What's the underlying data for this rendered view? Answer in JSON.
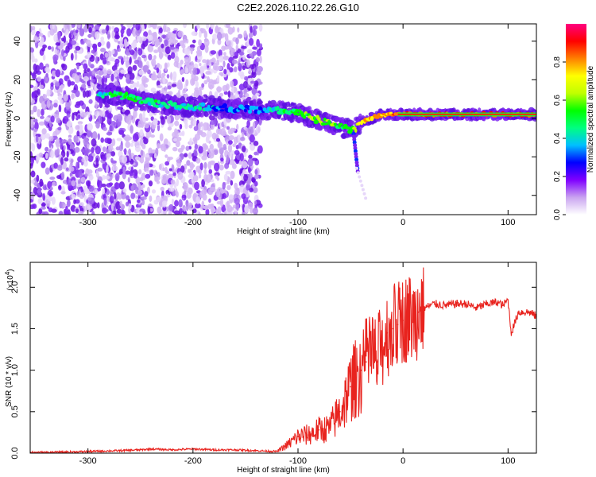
{
  "figure_title": "C2E2.2026.110.22.26.G10",
  "chart_data": [
    {
      "type": "heatmap",
      "title": "C2E2.2026.110.22.26.G10",
      "xlabel": "Height of straight line (km)",
      "ylabel": "Frequency (Hz)",
      "xlim": [
        -355,
        127
      ],
      "ylim": [
        -50,
        49
      ],
      "x_ticks": [
        -300,
        -200,
        -100,
        0,
        100
      ],
      "x_tick_labels": [
        "-300",
        "-200",
        "-100",
        "0",
        "100"
      ],
      "y_ticks": [
        -40,
        -20,
        0,
        20,
        40
      ],
      "y_tick_labels": [
        "-40",
        "-20",
        "0",
        "20",
        "40"
      ],
      "grid": false,
      "noise_region_x": [
        -355,
        -135
      ],
      "ridge": {
        "x": [
          -285,
          -270,
          -255,
          -240,
          -225,
          -210,
          -195,
          -180,
          -165,
          -150,
          -135,
          -125,
          -115,
          -105,
          -95,
          -85,
          -75,
          -65,
          -55,
          -50,
          -45,
          -40,
          -35,
          -25,
          -15,
          0,
          20,
          40,
          60,
          80,
          100,
          127
        ],
        "frequency": [
          12,
          12,
          10,
          8,
          7,
          6,
          6,
          6,
          5,
          5,
          4,
          4,
          4,
          3,
          2,
          0,
          -2,
          -4,
          -5,
          -6,
          -5,
          -3,
          -1,
          1,
          2,
          2,
          2,
          2,
          2,
          2,
          2,
          2
        ],
        "amplitude": [
          0.4,
          0.5,
          0.5,
          0.45,
          0.45,
          0.4,
          0.4,
          0.35,
          0.35,
          0.3,
          0.35,
          0.4,
          0.45,
          0.5,
          0.55,
          0.6,
          0.6,
          0.55,
          0.5,
          0.6,
          0.55,
          0.7,
          0.75,
          0.8,
          0.8,
          0.85,
          0.9,
          0.9,
          0.9,
          0.9,
          0.88,
          0.85
        ]
      },
      "colorbar": {
        "label": "Normalized spectral amplitude",
        "range": [
          0,
          1
        ],
        "ticks": [
          0.0,
          0.2,
          0.4,
          0.6,
          0.8
        ],
        "tick_labels": [
          "0.0",
          "0.2",
          "0.4",
          "0.6",
          "0.8"
        ],
        "colors": [
          "#ffffff",
          "#c9a3f0",
          "#8000ff",
          "#0000ff",
          "#00c0ff",
          "#00ff80",
          "#00ff00",
          "#c0ff00",
          "#ffff00",
          "#ff8000",
          "#ff0000",
          "#ff0080"
        ]
      }
    },
    {
      "type": "line",
      "xlabel": "Height of straight line (km)",
      "ylabel": "SNR (10 * v/v)",
      "y_scale_label": "(x10",
      "y_scale_exponent": "4",
      "y_scale_suffix": ")",
      "xlim": [
        -355,
        127
      ],
      "ylim": [
        0,
        2.3
      ],
      "x_ticks": [
        -300,
        -200,
        -100,
        0,
        100
      ],
      "x_tick_labels": [
        "-300",
        "-200",
        "-100",
        "0",
        "100"
      ],
      "y_ticks": [
        0.0,
        0.5,
        1.0,
        1.5,
        2.0
      ],
      "y_tick_labels": [
        "0.0",
        "0.5",
        "1.0",
        "1.5",
        "2.0"
      ],
      "series": [
        {
          "name": "SNR",
          "color": "#e8231e",
          "x": [
            -355,
            -330,
            -300,
            -270,
            -250,
            -240,
            -220,
            -200,
            -180,
            -160,
            -140,
            -120,
            -110,
            -100,
            -90,
            -80,
            -70,
            -60,
            -50,
            -45,
            -40,
            -35,
            -30,
            -25,
            -20,
            -15,
            -10,
            -5,
            0,
            5,
            10,
            15,
            20,
            30,
            40,
            50,
            60,
            70,
            80,
            90,
            95,
            100,
            103,
            110,
            120,
            127
          ],
          "values": [
            0.01,
            0.01,
            0.02,
            0.03,
            0.04,
            0.05,
            0.04,
            0.05,
            0.04,
            0.04,
            0.03,
            0.02,
            0.1,
            0.2,
            0.22,
            0.28,
            0.3,
            0.5,
            0.8,
            0.9,
            1.0,
            1.1,
            1.2,
            1.1,
            1.3,
            1.45,
            1.5,
            1.55,
            1.6,
            1.65,
            1.6,
            1.7,
            1.75,
            1.8,
            1.78,
            1.8,
            1.8,
            1.75,
            1.8,
            1.82,
            1.78,
            1.85,
            1.45,
            1.7,
            1.7,
            1.65
          ]
        }
      ]
    }
  ]
}
